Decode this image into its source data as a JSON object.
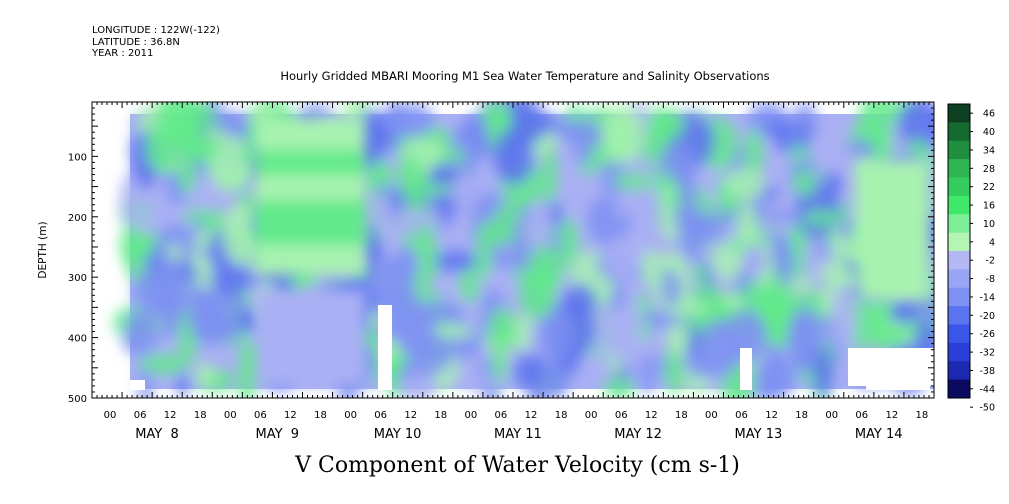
{
  "header": {
    "longitude": "LONGITUDE : 122W(-122)",
    "latitude": "LATITUDE : 36.8N",
    "year": "YEAR : 2011"
  },
  "chart_data": {
    "type": "heatmap",
    "title": "Hourly Gridded MBARI Mooring M1 Sea Water Temperature and Salinity Observations",
    "xlabel": "V Component of Water Velocity (cm s-1)",
    "ylabel": "DEPTH (m)",
    "y_ticks": [
      100,
      200,
      300,
      400,
      500
    ],
    "y_range": [
      10,
      500
    ],
    "y_reversed": true,
    "x_hour_ticks": [
      "00",
      "06",
      "12",
      "18",
      "00",
      "06",
      "12",
      "18",
      "00",
      "06",
      "12",
      "18",
      "00",
      "06",
      "12",
      "18",
      "00",
      "06",
      "12",
      "18",
      "00",
      "06",
      "12",
      "18",
      "00",
      "06",
      "12",
      "18"
    ],
    "x_day_labels": [
      "MAY  8",
      "MAY  9",
      "MAY 10",
      "MAY 11",
      "MAY 12",
      "MAY 13",
      "MAY 14"
    ],
    "x_range_days": [
      0,
      7
    ],
    "colorbar": {
      "levels": [
        46,
        40,
        34,
        28,
        22,
        16,
        10,
        4,
        -2,
        -8,
        -14,
        -20,
        -26,
        -32,
        -38,
        -44,
        -50
      ],
      "label_values": [
        "46",
        "40",
        "34",
        "28",
        "22",
        "16",
        "10",
        "4",
        "-2",
        "-8",
        "-14",
        "-20",
        "-26",
        "-32",
        "-38",
        "-44",
        "-50"
      ],
      "colors": {
        "high": "#0d4020",
        "mid_positive": "#3fe868",
        "near_zero_pos": "#b4f5b4",
        "near_zero_neg": "#b4b8f5",
        "mid_negative": "#5a74f0",
        "low": "#0a0a60"
      }
    },
    "field_description_colors": {
      "green": "#62ea8a",
      "lightgreen": "#a8f2b0",
      "lightblue": "#aab0f4",
      "blue": "#7e90f2",
      "deepblue": "#5c72ee"
    }
  }
}
